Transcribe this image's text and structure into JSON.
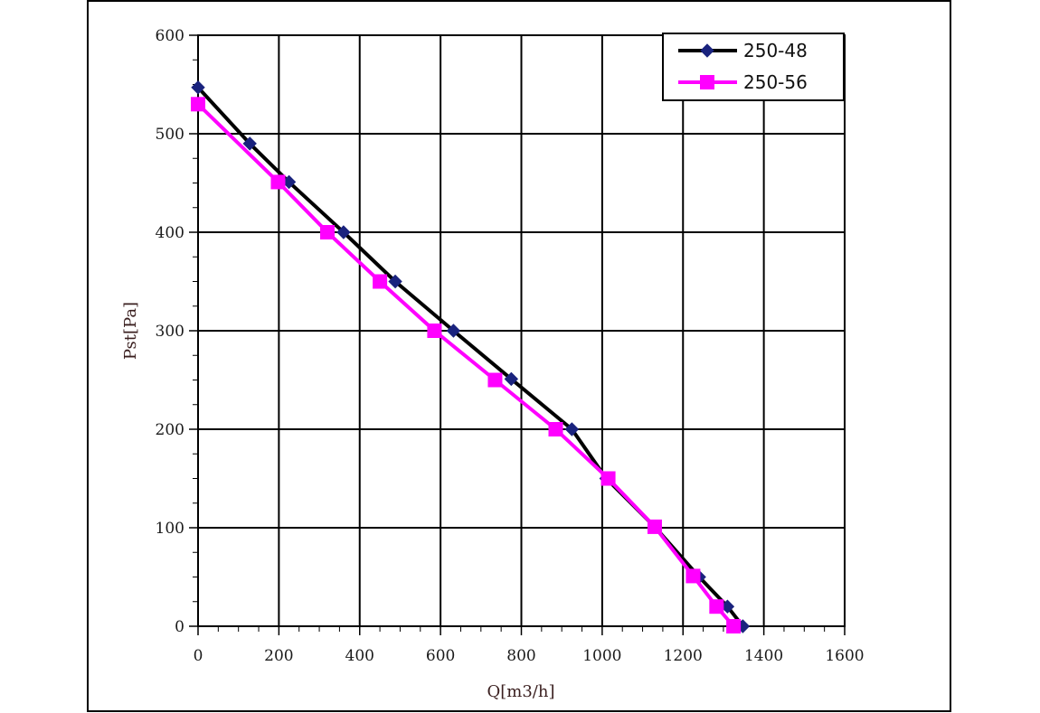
{
  "chart_data": {
    "type": "line",
    "xlabel": "Q[m3/h]",
    "ylabel": "Pst[Pa]",
    "xlim": [
      0,
      1600
    ],
    "ylim": [
      0,
      600
    ],
    "x_ticks": [
      "0",
      "200",
      "400",
      "600",
      "800",
      "1000",
      "1200",
      "1400",
      "1600"
    ],
    "y_ticks": [
      "0",
      "100",
      "200",
      "300",
      "400",
      "500",
      "600"
    ],
    "grid": true,
    "legend_position": "top-right",
    "series": [
      {
        "name": "250-48",
        "color": "#000000",
        "marker": "diamond",
        "marker_color": "#1a237e",
        "points": [
          [
            0,
            547
          ],
          [
            128,
            490
          ],
          [
            225,
            451
          ],
          [
            360,
            400
          ],
          [
            488,
            350
          ],
          [
            632,
            300
          ],
          [
            775,
            251
          ],
          [
            925,
            200
          ],
          [
            1010,
            150
          ],
          [
            1130,
            101
          ],
          [
            1240,
            50
          ],
          [
            1310,
            20
          ],
          [
            1348,
            0
          ]
        ]
      },
      {
        "name": "250-56",
        "color": "#ff00ff",
        "marker": "square",
        "marker_color": "#ff00ff",
        "points": [
          [
            0,
            530
          ],
          [
            198,
            451
          ],
          [
            320,
            400
          ],
          [
            450,
            350
          ],
          [
            585,
            300
          ],
          [
            735,
            250
          ],
          [
            885,
            200
          ],
          [
            1015,
            150
          ],
          [
            1130,
            101
          ],
          [
            1225,
            51
          ],
          [
            1283,
            20
          ],
          [
            1325,
            0
          ]
        ]
      }
    ]
  }
}
